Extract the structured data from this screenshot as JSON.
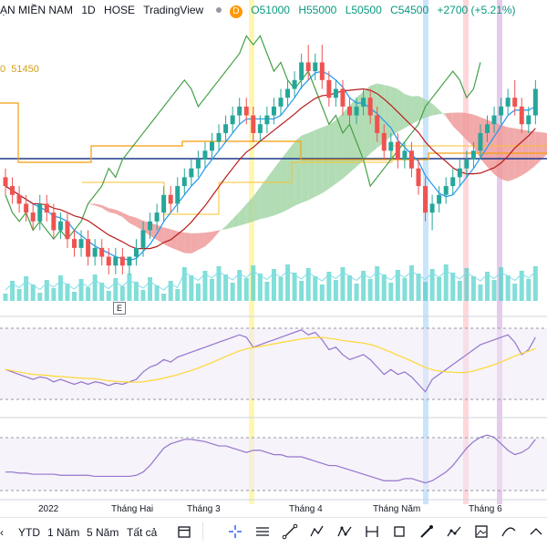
{
  "header": {
    "symbol": "ẠN MIỀN NAM",
    "interval": "1D",
    "exchange": "HOSE",
    "source": "TradingView",
    "badge": "D",
    "open": "O51000",
    "high": "H55000",
    "low": "L50500",
    "close": "C54500",
    "change": "+2700 (+5.21%)"
  },
  "level_label": "51450",
  "level_label_prefix": "0",
  "event_marker": "E",
  "x_labels": [
    "2022",
    "Tháng Hai",
    "Tháng 3",
    "Tháng 4",
    "Tháng Năm",
    "Tháng 6"
  ],
  "toolbar": {
    "ranges": [
      "YTD",
      "1 Năm",
      "5 Năm",
      "Tất cả"
    ],
    "tools": [
      "calendar-icon",
      "crosshair-icon",
      "horizontal-lines-icon",
      "trend-line-icon",
      "pattern-icon",
      "abcd-pattern-icon",
      "xabcd-pattern-icon",
      "range-measure-icon",
      "rectangle-icon",
      "brush-icon",
      "path-icon",
      "image-icon",
      "curve-icon",
      "more-icon"
    ]
  },
  "colors": {
    "up": "#26a69a",
    "down": "#ef5350",
    "tenkan": "#2196f3",
    "kijun": "#b71c1c",
    "chikou": "#43a047",
    "cloud_bull": "#a5d6a7",
    "cloud_bear": "#ef9a9a",
    "hline_blue": "#1e3a8a",
    "hline_orange": "#f59e0b",
    "volume": "#4dd0c8",
    "rsi": "#9575cd",
    "rsi_ma": "#fdd835"
  },
  "chart_data": {
    "type": "candlestick",
    "symbol": "ẠN MIỀN NAM",
    "candles": [
      [
        44,
        45,
        42,
        43
      ],
      [
        43,
        44,
        41,
        42
      ],
      [
        42,
        43,
        40,
        41
      ],
      [
        41,
        42,
        39,
        40
      ],
      [
        40,
        41,
        38,
        39
      ],
      [
        39,
        42,
        38,
        41
      ],
      [
        41,
        42,
        39,
        40
      ],
      [
        40,
        41,
        37,
        38
      ],
      [
        38,
        40,
        37,
        39
      ],
      [
        39,
        40,
        36,
        37
      ],
      [
        37,
        38,
        35,
        36
      ],
      [
        36,
        38,
        35,
        37
      ],
      [
        37,
        38,
        34,
        35
      ],
      [
        35,
        37,
        34,
        36
      ],
      [
        36,
        37,
        34,
        35
      ],
      [
        35,
        36,
        33,
        34
      ],
      [
        34,
        36,
        33,
        35
      ],
      [
        35,
        36,
        33,
        34
      ],
      [
        34,
        35,
        33,
        35
      ],
      [
        35,
        37,
        34,
        36
      ],
      [
        36,
        39,
        35,
        38
      ],
      [
        38,
        40,
        37,
        39
      ],
      [
        39,
        41,
        38,
        40
      ],
      [
        40,
        43,
        39,
        42
      ],
      [
        42,
        43,
        40,
        41
      ],
      [
        41,
        44,
        40,
        43
      ],
      [
        43,
        45,
        42,
        44
      ],
      [
        44,
        46,
        43,
        45
      ],
      [
        45,
        47,
        44,
        46
      ],
      [
        46,
        48,
        45,
        47
      ],
      [
        47,
        49,
        46,
        48
      ],
      [
        48,
        50,
        47,
        49
      ],
      [
        49,
        51,
        48,
        50
      ],
      [
        50,
        52,
        49,
        51
      ],
      [
        51,
        53,
        50,
        52
      ],
      [
        52,
        53,
        50,
        51
      ],
      [
        51,
        52,
        48,
        49
      ],
      [
        49,
        51,
        48,
        50
      ],
      [
        50,
        52,
        49,
        51
      ],
      [
        51,
        53,
        50,
        52
      ],
      [
        52,
        54,
        51,
        53
      ],
      [
        53,
        55,
        52,
        54
      ],
      [
        54,
        56,
        53,
        55
      ],
      [
        55,
        58,
        54,
        57
      ],
      [
        57,
        59,
        55,
        56
      ],
      [
        56,
        58,
        55,
        57
      ],
      [
        57,
        59,
        54,
        55
      ],
      [
        55,
        56,
        52,
        53
      ],
      [
        53,
        55,
        52,
        54
      ],
      [
        54,
        55,
        51,
        52
      ],
      [
        52,
        53,
        50,
        51
      ],
      [
        51,
        53,
        50,
        52
      ],
      [
        52,
        54,
        51,
        53
      ],
      [
        53,
        54,
        50,
        51
      ],
      [
        51,
        52,
        48,
        49
      ],
      [
        49,
        50,
        46,
        47
      ],
      [
        47,
        49,
        46,
        48
      ],
      [
        48,
        49,
        45,
        46
      ],
      [
        46,
        48,
        45,
        47
      ],
      [
        47,
        48,
        44,
        45
      ],
      [
        45,
        46,
        42,
        43
      ],
      [
        43,
        44,
        39,
        40
      ],
      [
        40,
        42,
        38,
        41
      ],
      [
        41,
        43,
        40,
        42
      ],
      [
        42,
        44,
        41,
        43
      ],
      [
        43,
        45,
        42,
        44
      ],
      [
        44,
        46,
        43,
        45
      ],
      [
        45,
        47,
        44,
        46
      ],
      [
        46,
        48,
        45,
        47
      ],
      [
        47,
        50,
        46,
        49
      ],
      [
        49,
        51,
        48,
        50
      ],
      [
        50,
        52,
        49,
        51
      ],
      [
        51,
        53,
        50,
        52
      ],
      [
        52,
        54,
        51,
        53
      ],
      [
        53,
        55,
        51,
        52
      ],
      [
        52,
        53,
        49,
        50
      ],
      [
        50,
        52,
        49,
        51
      ],
      [
        51,
        55,
        50,
        54
      ]
    ],
    "rsi": [
      48,
      46,
      44,
      42,
      40,
      42,
      41,
      38,
      40,
      38,
      36,
      38,
      36,
      38,
      37,
      35,
      37,
      36,
      38,
      40,
      46,
      50,
      52,
      56,
      54,
      58,
      60,
      62,
      64,
      66,
      68,
      70,
      72,
      74,
      76,
      74,
      66,
      68,
      70,
      72,
      74,
      76,
      78,
      80,
      76,
      78,
      72,
      64,
      66,
      60,
      56,
      58,
      60,
      56,
      50,
      44,
      48,
      44,
      46,
      42,
      36,
      30,
      40,
      44,
      48,
      52,
      56,
      60,
      64,
      68,
      70,
      72,
      74,
      76,
      70,
      60,
      64,
      74
    ],
    "indicator2": [
      30,
      30,
      29,
      29,
      28,
      28,
      28,
      28,
      27,
      27,
      27,
      27,
      27,
      26,
      26,
      26,
      26,
      26,
      26,
      27,
      30,
      36,
      44,
      52,
      56,
      58,
      60,
      60,
      59,
      58,
      56,
      54,
      54,
      52,
      50,
      48,
      50,
      50,
      48,
      46,
      46,
      44,
      44,
      44,
      42,
      40,
      38,
      36,
      36,
      34,
      32,
      30,
      28,
      26,
      24,
      22,
      22,
      22,
      24,
      24,
      22,
      20,
      22,
      26,
      30,
      36,
      44,
      52,
      58,
      62,
      64,
      62,
      56,
      50,
      46,
      48,
      52,
      60
    ],
    "xlabels": [
      "2022",
      "Tháng Hai",
      "Tháng 3",
      "Tháng 4",
      "Tháng Năm",
      "Tháng 6"
    ],
    "level": 51450
  }
}
